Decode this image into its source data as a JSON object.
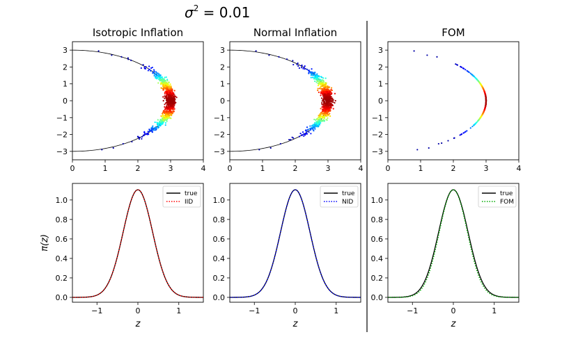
{
  "figure": {
    "suptitle_sigma": "σ",
    "suptitle_exp": "2",
    "suptitle_rest": " = 0.01"
  },
  "chart_data": [
    {
      "type": "scatter",
      "title": "Isotropic Inflation",
      "x_ticks": [
        "0",
        "1",
        "2",
        "3",
        "4"
      ],
      "y_ticks": [
        "−3",
        "−2",
        "−1",
        "0",
        "1",
        "2",
        "3"
      ],
      "xlim": [
        0,
        4
      ],
      "ylim": [
        -3.5,
        3.5
      ],
      "curve": "circle radius 3, right half",
      "colormap": "jet (blue low density to red high density)",
      "scatter_spread": 0.08
    },
    {
      "type": "scatter",
      "title": "Normal Inflation",
      "x_ticks": [
        "0",
        "1",
        "2",
        "3",
        "4"
      ],
      "y_ticks": [
        "−3",
        "−2",
        "−1",
        "0",
        "1",
        "2",
        "3"
      ],
      "xlim": [
        0,
        4
      ],
      "ylim": [
        -3.5,
        3.5
      ],
      "curve": "circle radius 3, right half",
      "colormap": "jet (blue low density to red high density)",
      "scatter_spread": 0.08
    },
    {
      "type": "scatter",
      "title": "FOM",
      "x_ticks": [
        "0",
        "1",
        "2",
        "3",
        "4"
      ],
      "y_ticks": [
        "−3",
        "−2",
        "−1",
        "0",
        "1",
        "2",
        "3"
      ],
      "xlim": [
        0,
        4
      ],
      "ylim": [
        -3.5,
        3.5
      ],
      "curve": "none",
      "colormap": "jet (blue low density to red high density)",
      "scatter_spread": 0.0
    },
    {
      "type": "line",
      "x_ticks": [
        "−1",
        "0",
        "1"
      ],
      "y_ticks": [
        "0.0",
        "0.2",
        "0.4",
        "0.6",
        "0.8",
        "1.0"
      ],
      "xlim": [
        -1.6,
        1.6
      ],
      "ylim": [
        -0.05,
        1.17
      ],
      "xlabel": "z",
      "ylabel": "π(z)",
      "series": [
        {
          "name": "true",
          "color": "#000000",
          "style": "solid",
          "sigma": 0.36
        },
        {
          "name": "IID",
          "color": "#ff0000",
          "style": "dotted",
          "sigma": 0.36
        }
      ]
    },
    {
      "type": "line",
      "x_ticks": [
        "−1",
        "0",
        "1"
      ],
      "y_ticks": [
        "0.0",
        "0.2",
        "0.4",
        "0.6",
        "0.8",
        "1.0"
      ],
      "xlim": [
        -1.6,
        1.6
      ],
      "ylim": [
        -0.05,
        1.17
      ],
      "xlabel": "z",
      "ylabel": "",
      "series": [
        {
          "name": "true",
          "color": "#000000",
          "style": "solid",
          "sigma": 0.36
        },
        {
          "name": "NID",
          "color": "#0000ff",
          "style": "dotted",
          "sigma": 0.36
        }
      ]
    },
    {
      "type": "line",
      "x_ticks": [
        "−1",
        "0",
        "1"
      ],
      "y_ticks": [
        "0.0",
        "0.2",
        "0.4",
        "0.6",
        "0.8",
        "1.0"
      ],
      "xlim": [
        -1.6,
        1.6
      ],
      "ylim": [
        -0.05,
        1.17
      ],
      "xlabel": "z",
      "ylabel": "",
      "series": [
        {
          "name": "true",
          "color": "#000000",
          "style": "solid",
          "sigma": 0.36
        },
        {
          "name": "FOM",
          "color": "#00aa00",
          "style": "dotted",
          "sigma": 0.345
        }
      ]
    }
  ]
}
